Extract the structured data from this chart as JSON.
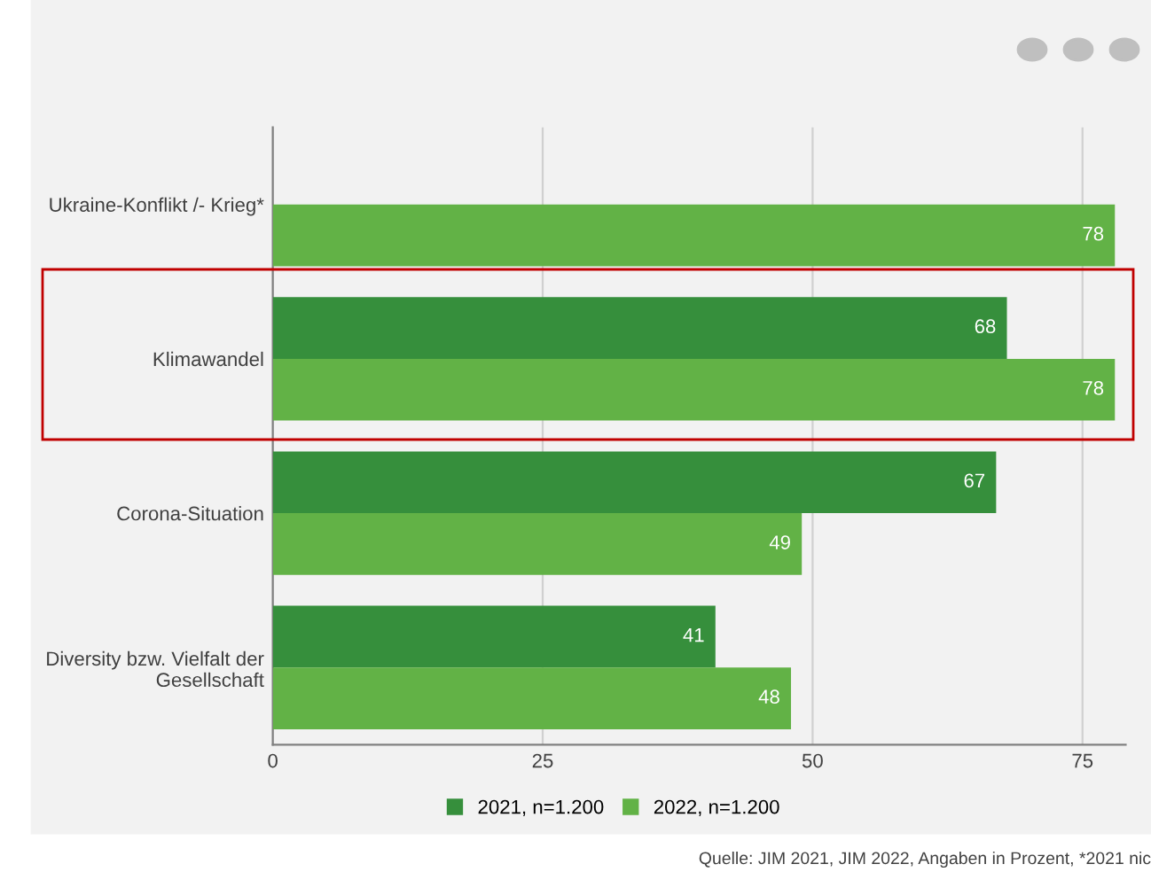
{
  "chart_data": {
    "type": "bar",
    "orientation": "horizontal",
    "categories": [
      "Ukraine-Konflikt /- Krieg*",
      "Klimawandel",
      "Corona-Situation",
      "Diversity bzw. Vielfalt der\nGesellschaft"
    ],
    "series": [
      {
        "name": "2021, n=1.200",
        "color": "#368f3c",
        "values": [
          null,
          68,
          67,
          41
        ]
      },
      {
        "name": "2022, n=1.200",
        "color": "#62b246",
        "values": [
          78,
          78,
          49,
          48
        ]
      }
    ],
    "xlim": [
      0,
      79
    ],
    "xticks": [
      0,
      25,
      50,
      75
    ],
    "grid": "x",
    "legend": "bottom",
    "data_labels": true,
    "annotations": [
      "Quelle: JIM 2021, JIM 2022, Angaben in Prozent, *2021 nic"
    ]
  }
}
